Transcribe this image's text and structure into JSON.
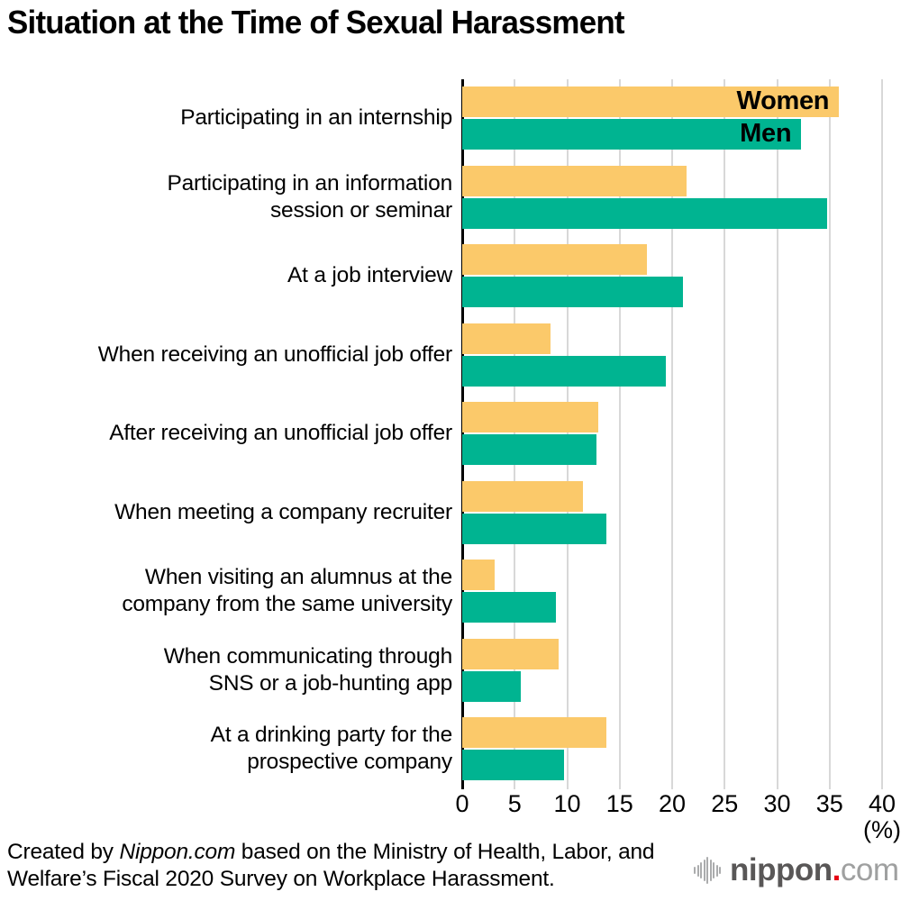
{
  "title": "Situation at the Time of Sexual Harassment",
  "legend": {
    "women": "Women",
    "men": "Men"
  },
  "axis": {
    "ticks": [
      0,
      5,
      10,
      15,
      20,
      25,
      30,
      35,
      40
    ],
    "max": 40,
    "unit": "(%)"
  },
  "colors": {
    "women_bar": "#FBC96A",
    "men_bar": "#00B491",
    "gridline": "#D8D8D8",
    "axis_line": "#000000",
    "logo_dark_gray": "#595757",
    "logo_light_gray": "#9FA0A0",
    "logo_red": "#E60012"
  },
  "source": {
    "prefix": "Created by ",
    "credit": "Nippon.com",
    "line1_rest": " based on the Ministry of Health, Labor, and",
    "line2": "Welfare’s Fiscal 2020 Survey on Workplace Harassment."
  },
  "logo": {
    "name": "nippon",
    "dot": ".",
    "tld": "com"
  },
  "chart_data": {
    "type": "bar",
    "orientation": "horizontal",
    "title": "Situation at the Time of Sexual Harassment",
    "categories": [
      "Participating in an internship",
      "Participating in an information session or seminar",
      "At a job interview",
      "When receiving an unofficial job offer",
      "After receiving an unofficial job offer",
      "When meeting a company recruiter",
      "When visiting an alumnus at the company from the same university",
      "When communicating through SNS or a job-hunting app",
      "At a drinking party for the prospective company"
    ],
    "categories_lines": [
      [
        "Participating in an internship"
      ],
      [
        "Participating in an information",
        "session or seminar"
      ],
      [
        "At a job interview"
      ],
      [
        "When receiving an unofficial job offer"
      ],
      [
        "After receiving an unofficial job offer"
      ],
      [
        "When meeting a company recruiter"
      ],
      [
        "When visiting an alumnus at the",
        "company from the same university"
      ],
      [
        "When communicating through",
        "SNS or a job-hunting app"
      ],
      [
        "At a drinking party for the",
        "prospective company"
      ]
    ],
    "series": [
      {
        "name": "Women",
        "color": "#FBC96A",
        "values": [
          35.9,
          21.4,
          17.6,
          8.4,
          13.0,
          11.5,
          3.1,
          9.2,
          13.7
        ]
      },
      {
        "name": "Men",
        "color": "#00B491",
        "values": [
          32.3,
          34.8,
          21.0,
          19.4,
          12.8,
          13.7,
          8.9,
          5.6,
          9.7
        ]
      }
    ],
    "xlim": [
      0,
      40
    ],
    "xlabel": "(%)",
    "grid": true,
    "legend_position": "inside-first-bars"
  }
}
